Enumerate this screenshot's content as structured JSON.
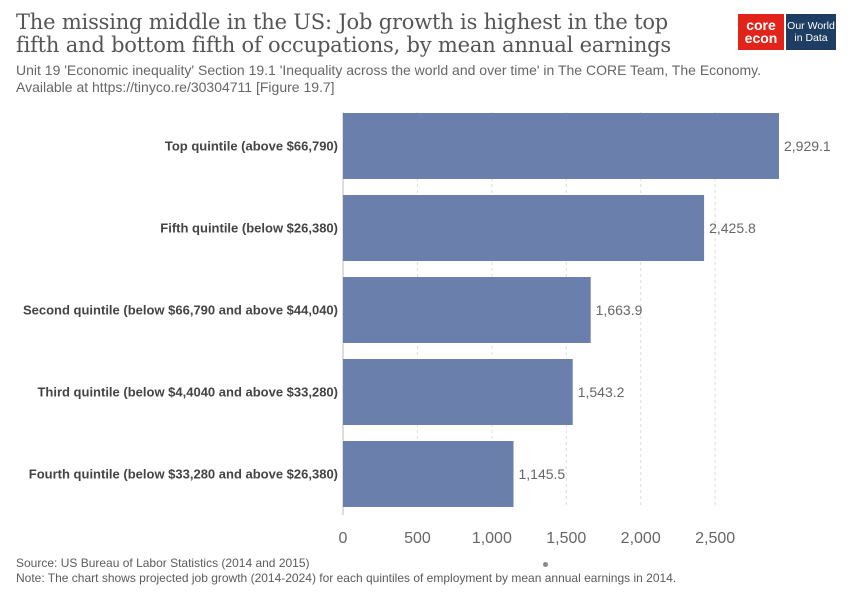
{
  "header": {
    "title": "The missing middle in the US: Job growth is highest in the top fifth and bottom fifth of occupations, by mean annual earnings",
    "subtitle": "Unit 19 'Economic inequality' Section 19.1 'Inequality across the world and over time' in The CORE Team, The Economy. Available at https://tinyco.re/30304711 [Figure 19.7]"
  },
  "logos": {
    "core_line1": "core",
    "core_line2": "econ",
    "owid_line1": "Our World",
    "owid_line2": "in Data",
    "core_color": "#e2231a",
    "owid_color": "#1d3d63"
  },
  "footer": {
    "source": "Source: US Bureau of Labor Statistics (2014 and 2015)",
    "note": "Note: The chart shows projected job growth (2014-2024) for each quintiles of employment by mean annual earnings in 2014."
  },
  "chart_data": {
    "type": "bar",
    "orientation": "horizontal",
    "categories": [
      "Top quintile (above $66,790)",
      "Fifth quintile (below $26,380)",
      "Second quintile (below $66,790 and above $44,040)",
      "Third quintile (below $4,4040 and above $33,280)",
      "Fourth quintile (below $33,280 and above $26,380)"
    ],
    "values": [
      2929.1,
      2425.8,
      1663.9,
      1543.2,
      1145.5
    ],
    "value_labels": [
      "2,929.1",
      "2,425.8",
      "1,663.9",
      "1,543.2",
      "1,145.5"
    ],
    "xlim": [
      0,
      2929.1
    ],
    "xticks": [
      0,
      500,
      1000,
      1500,
      2000,
      2500
    ],
    "xtick_labels": [
      "0",
      "500",
      "1,000",
      "1,500",
      "2,000",
      "2,500"
    ],
    "grid": "vertical dashed",
    "bar_color": "#6a7fab"
  }
}
